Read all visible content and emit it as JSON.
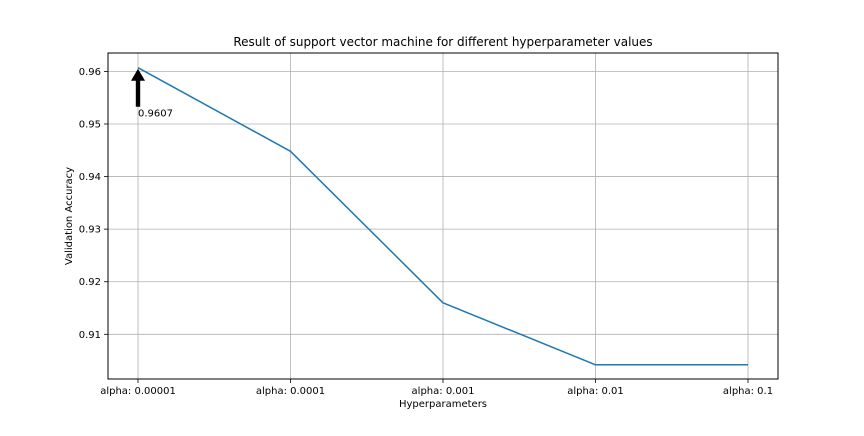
{
  "chart_data": {
    "type": "line",
    "title": "Result of support vector machine for different hyperparameter values",
    "xlabel": "Hyperparameters",
    "ylabel": "Validation Accuracy",
    "categories": [
      "alpha: 0.00001",
      "alpha: 0.0001",
      "alpha: 0.001",
      "alpha: 0.01",
      "alpha: 0.1"
    ],
    "series": [
      {
        "values": [
          0.9607,
          0.9448,
          0.916,
          0.9042,
          0.9042
        ],
        "color": "#1f77b4"
      }
    ],
    "ylim": [
      0.9015,
      0.9635
    ],
    "yticks": [
      0.91,
      0.92,
      0.93,
      0.94,
      0.95,
      0.96
    ],
    "ytick_labels": [
      "0.91",
      "0.92",
      "0.93",
      "0.94",
      "0.95",
      "0.96"
    ],
    "grid": true,
    "annotation": {
      "text": "0.9607",
      "category_index": 0,
      "value": 0.9607,
      "arrow": "up"
    }
  }
}
